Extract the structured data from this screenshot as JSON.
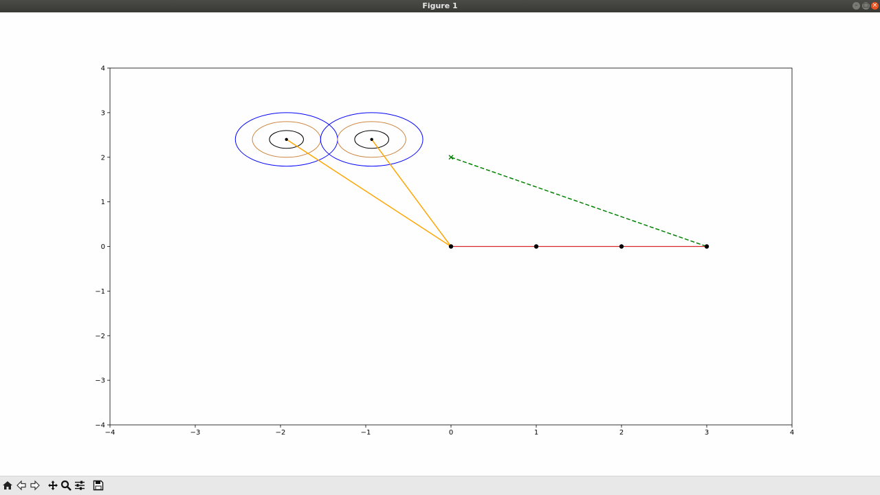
{
  "window": {
    "title": "Figure 1",
    "controls": [
      "minimize-icon",
      "maximize-icon",
      "close-icon"
    ]
  },
  "toolbar": {
    "buttons": [
      {
        "name": "home-button",
        "icon": "home-icon"
      },
      {
        "name": "back-button",
        "icon": "arrow-left-icon"
      },
      {
        "name": "forward-button",
        "icon": "arrow-right-icon"
      },
      {
        "name": "pan-button",
        "icon": "move-icon"
      },
      {
        "name": "zoom-button",
        "icon": "magnifier-icon"
      },
      {
        "name": "configure-subplots-button",
        "icon": "sliders-icon"
      },
      {
        "name": "save-button",
        "icon": "floppy-disk-icon"
      }
    ]
  },
  "chart_data": {
    "type": "line",
    "title": "",
    "xlabel": "",
    "ylabel": "",
    "xlim": [
      -4,
      4
    ],
    "ylim": [
      -4,
      4
    ],
    "xticks": [
      -4,
      -3,
      -2,
      -1,
      0,
      1,
      2,
      3,
      4
    ],
    "yticks": [
      -4,
      -3,
      -2,
      -1,
      0,
      1,
      2,
      3,
      4
    ],
    "tick_labels_x": [
      "−4",
      "−3",
      "−2",
      "−1",
      "0",
      "1",
      "2",
      "3",
      "4"
    ],
    "tick_labels_y": [
      "−4",
      "−3",
      "−2",
      "−1",
      "0",
      "1",
      "2",
      "3",
      "4"
    ],
    "grid": false,
    "colors": {
      "chain": "#d62728",
      "joints": "#000000",
      "links_to_targets": "#ffa500",
      "dashed_line": "#008000",
      "outer_circle": "#0000ff",
      "middle_circle": "#cd853f",
      "inner_circle": "#000000"
    },
    "chain": {
      "x": [
        0,
        1,
        2,
        3
      ],
      "y": [
        0,
        0,
        0,
        0
      ]
    },
    "targets": [
      {
        "x": -1.93,
        "y": 2.4,
        "radii": [
          0.2,
          0.4,
          0.6
        ]
      },
      {
        "x": -0.93,
        "y": 2.4,
        "radii": [
          0.2,
          0.4,
          0.6
        ]
      }
    ],
    "goal_marker": {
      "x": 0,
      "y": 2,
      "marker": "x"
    },
    "dashed_line": {
      "x": [
        0,
        3
      ],
      "y": [
        2,
        0
      ]
    },
    "links_to_targets": [
      {
        "x": [
          0,
          -1.93
        ],
        "y": [
          0,
          2.4
        ]
      },
      {
        "x": [
          0,
          -0.93
        ],
        "y": [
          0,
          2.4
        ]
      }
    ]
  }
}
